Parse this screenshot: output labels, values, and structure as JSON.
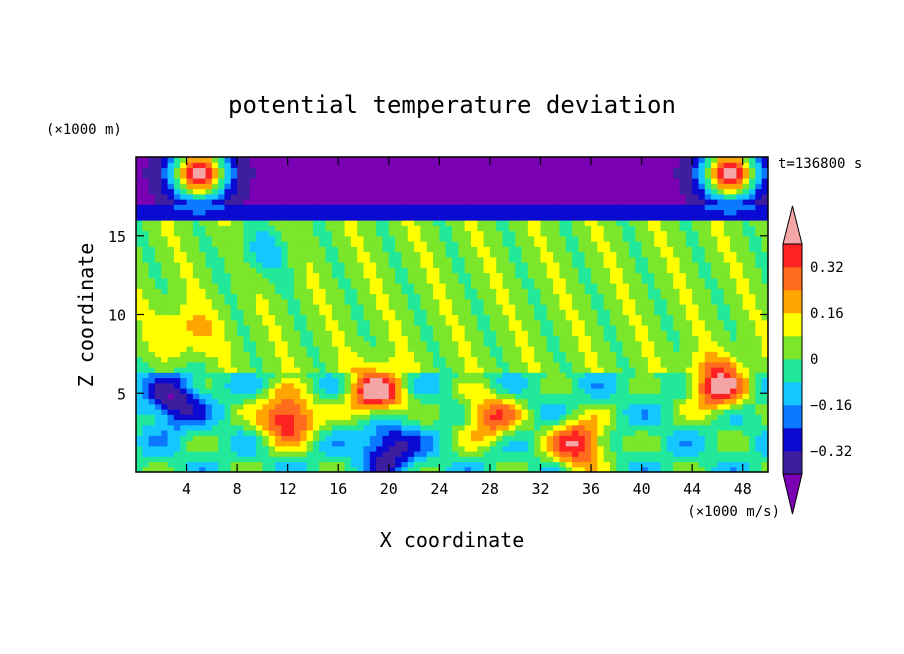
{
  "chart_data": {
    "type": "heatmap",
    "title": "potential temperature deviation",
    "xlabel": "X coordinate",
    "ylabel": "Z coordinate",
    "x_unit": "(×1000 m/s)",
    "y_unit": "(×1000 m)",
    "time_label": "t=136800 s",
    "xlim": [
      0,
      50
    ],
    "ylim": [
      0,
      20
    ],
    "x_ticks": [
      4,
      8,
      12,
      16,
      20,
      24,
      28,
      32,
      36,
      40,
      44,
      48
    ],
    "y_ticks": [
      5,
      10,
      15
    ],
    "colorbar": {
      "levels": [
        -0.4,
        -0.32,
        -0.24,
        -0.16,
        -0.08,
        0,
        0.08,
        0.16,
        0.24,
        0.32,
        0.4
      ],
      "tick_values": [
        0.32,
        0.16,
        0,
        -0.16,
        -0.32
      ],
      "tick_labels": [
        "0.32",
        "0.16",
        "0",
        "−0.16",
        "−0.32"
      ],
      "colors": [
        "#7b00b4",
        "#3c1e9e",
        "#0a0ad2",
        "#0a78ff",
        "#14c8ff",
        "#22e89a",
        "#7be62a",
        "#ffff00",
        "#ffa500",
        "#ff6c1e",
        "#ff2222",
        "#f4a5a5"
      ],
      "extend": "both"
    },
    "layers": [
      {
        "z_range": [
          17,
          20
        ],
        "value": -0.42,
        "desc": "upper purple band"
      },
      {
        "z_range": [
          16,
          17
        ],
        "value": -0.3
      },
      {
        "z_range": [
          6.5,
          16
        ],
        "value": 0.04
      },
      {
        "z_range": [
          0,
          6.5
        ],
        "value": -0.05
      }
    ],
    "features": [
      {
        "x": 12,
        "z": 3.5,
        "value": 0.45
      },
      {
        "x": 28,
        "z": 3.5,
        "value": 0.3
      },
      {
        "x": 35,
        "z": 1.8,
        "value": 0.4
      },
      {
        "x": 19,
        "z": 5.0,
        "value": 0.45
      },
      {
        "x": 46,
        "z": 5.5,
        "value": 0.45
      },
      {
        "x": 5,
        "z": 19,
        "value": 0.45
      },
      {
        "x": 47,
        "z": 19,
        "value": 0.45
      },
      {
        "x": 4,
        "z": 9,
        "value": 0.2
      },
      {
        "x": 10,
        "z": 14,
        "value": -0.1
      },
      {
        "x": 20,
        "z": 1.5,
        "value": -0.4
      },
      {
        "x": 3,
        "z": 4.5,
        "value": -0.4
      }
    ]
  }
}
